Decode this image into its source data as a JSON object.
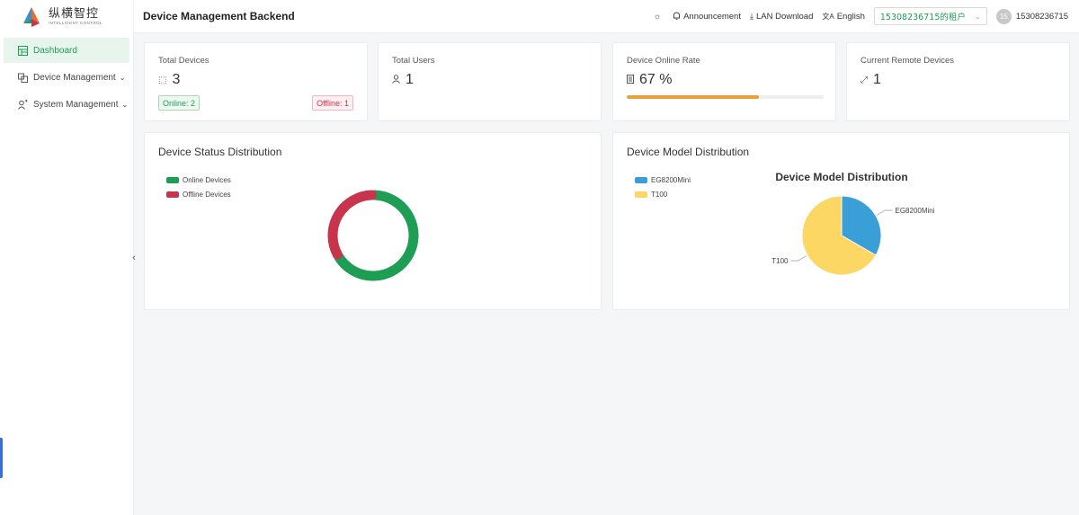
{
  "app": {
    "logo_cn": "纵横智控",
    "logo_en": "INTELLIGENT CONTROL",
    "header_title": "Device Management Backend"
  },
  "sidebar": {
    "items": [
      {
        "label": "Dashboard",
        "icon": "dashboard-icon",
        "active": true
      },
      {
        "label": "Device Management",
        "icon": "device-icon",
        "expandable": true
      },
      {
        "label": "System Management",
        "icon": "users-icon",
        "expandable": true
      }
    ]
  },
  "header": {
    "announcement": "Announcement",
    "lan_download": "LAN Download",
    "language": "English",
    "tenant": "15308236715的租户",
    "avatar_initials": "15",
    "username": "15308236715"
  },
  "stats": {
    "total_devices": {
      "label": "Total Devices",
      "value": "3",
      "online": "Online: 2",
      "offline": "Offline: 1"
    },
    "total_users": {
      "label": "Total Users",
      "value": "1"
    },
    "online_rate": {
      "label": "Device Online Rate",
      "value": "67 %",
      "percent": 67
    },
    "remote_devices": {
      "label": "Current Remote Devices",
      "value": "1"
    }
  },
  "colors": {
    "accent": "#1e9e55",
    "online": "#1e9e55",
    "offline": "#c8344c",
    "progress": "#e8a23a",
    "eg8200": "#3a9fd6",
    "t100": "#fdd764"
  },
  "chart_data": [
    {
      "type": "pie",
      "title": "Device Status Distribution",
      "categories": [
        "Online Devices",
        "Offline Devices"
      ],
      "values": [
        2,
        1
      ],
      "legend": "top-left"
    },
    {
      "type": "pie",
      "title": "Device Model Distribution",
      "inner_title": "Device Model Distribution",
      "categories": [
        "EG8200Mini",
        "T100"
      ],
      "values": [
        1,
        2
      ],
      "legend": "top-left"
    }
  ]
}
